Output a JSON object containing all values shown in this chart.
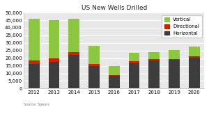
{
  "title": "US New Wells Drilled",
  "years": [
    "2012",
    "2013",
    "2014",
    "2015",
    "2016",
    "2017",
    "2018",
    "2019",
    "2020"
  ],
  "horizontal": [
    16000,
    17500,
    22000,
    15000,
    8500,
    16500,
    18500,
    19000,
    20500
  ],
  "directional": [
    2500,
    2500,
    2000,
    1000,
    500,
    1500,
    1000,
    500,
    500
  ],
  "vertical": [
    27500,
    25000,
    22000,
    12000,
    6000,
    5500,
    4500,
    6000,
    6500
  ],
  "color_horizontal": "#3d3d3d",
  "color_directional": "#cc2200",
  "color_vertical": "#8dc63f",
  "ylim": [
    0,
    50000
  ],
  "yticks": [
    0,
    5000,
    10000,
    15000,
    20000,
    25000,
    30000,
    35000,
    40000,
    45000,
    50000
  ],
  "source_text": "Source: Spears",
  "background_color": "#ffffff",
  "plot_bg_color": "#e8e8e8",
  "grid_color": "#ffffff"
}
